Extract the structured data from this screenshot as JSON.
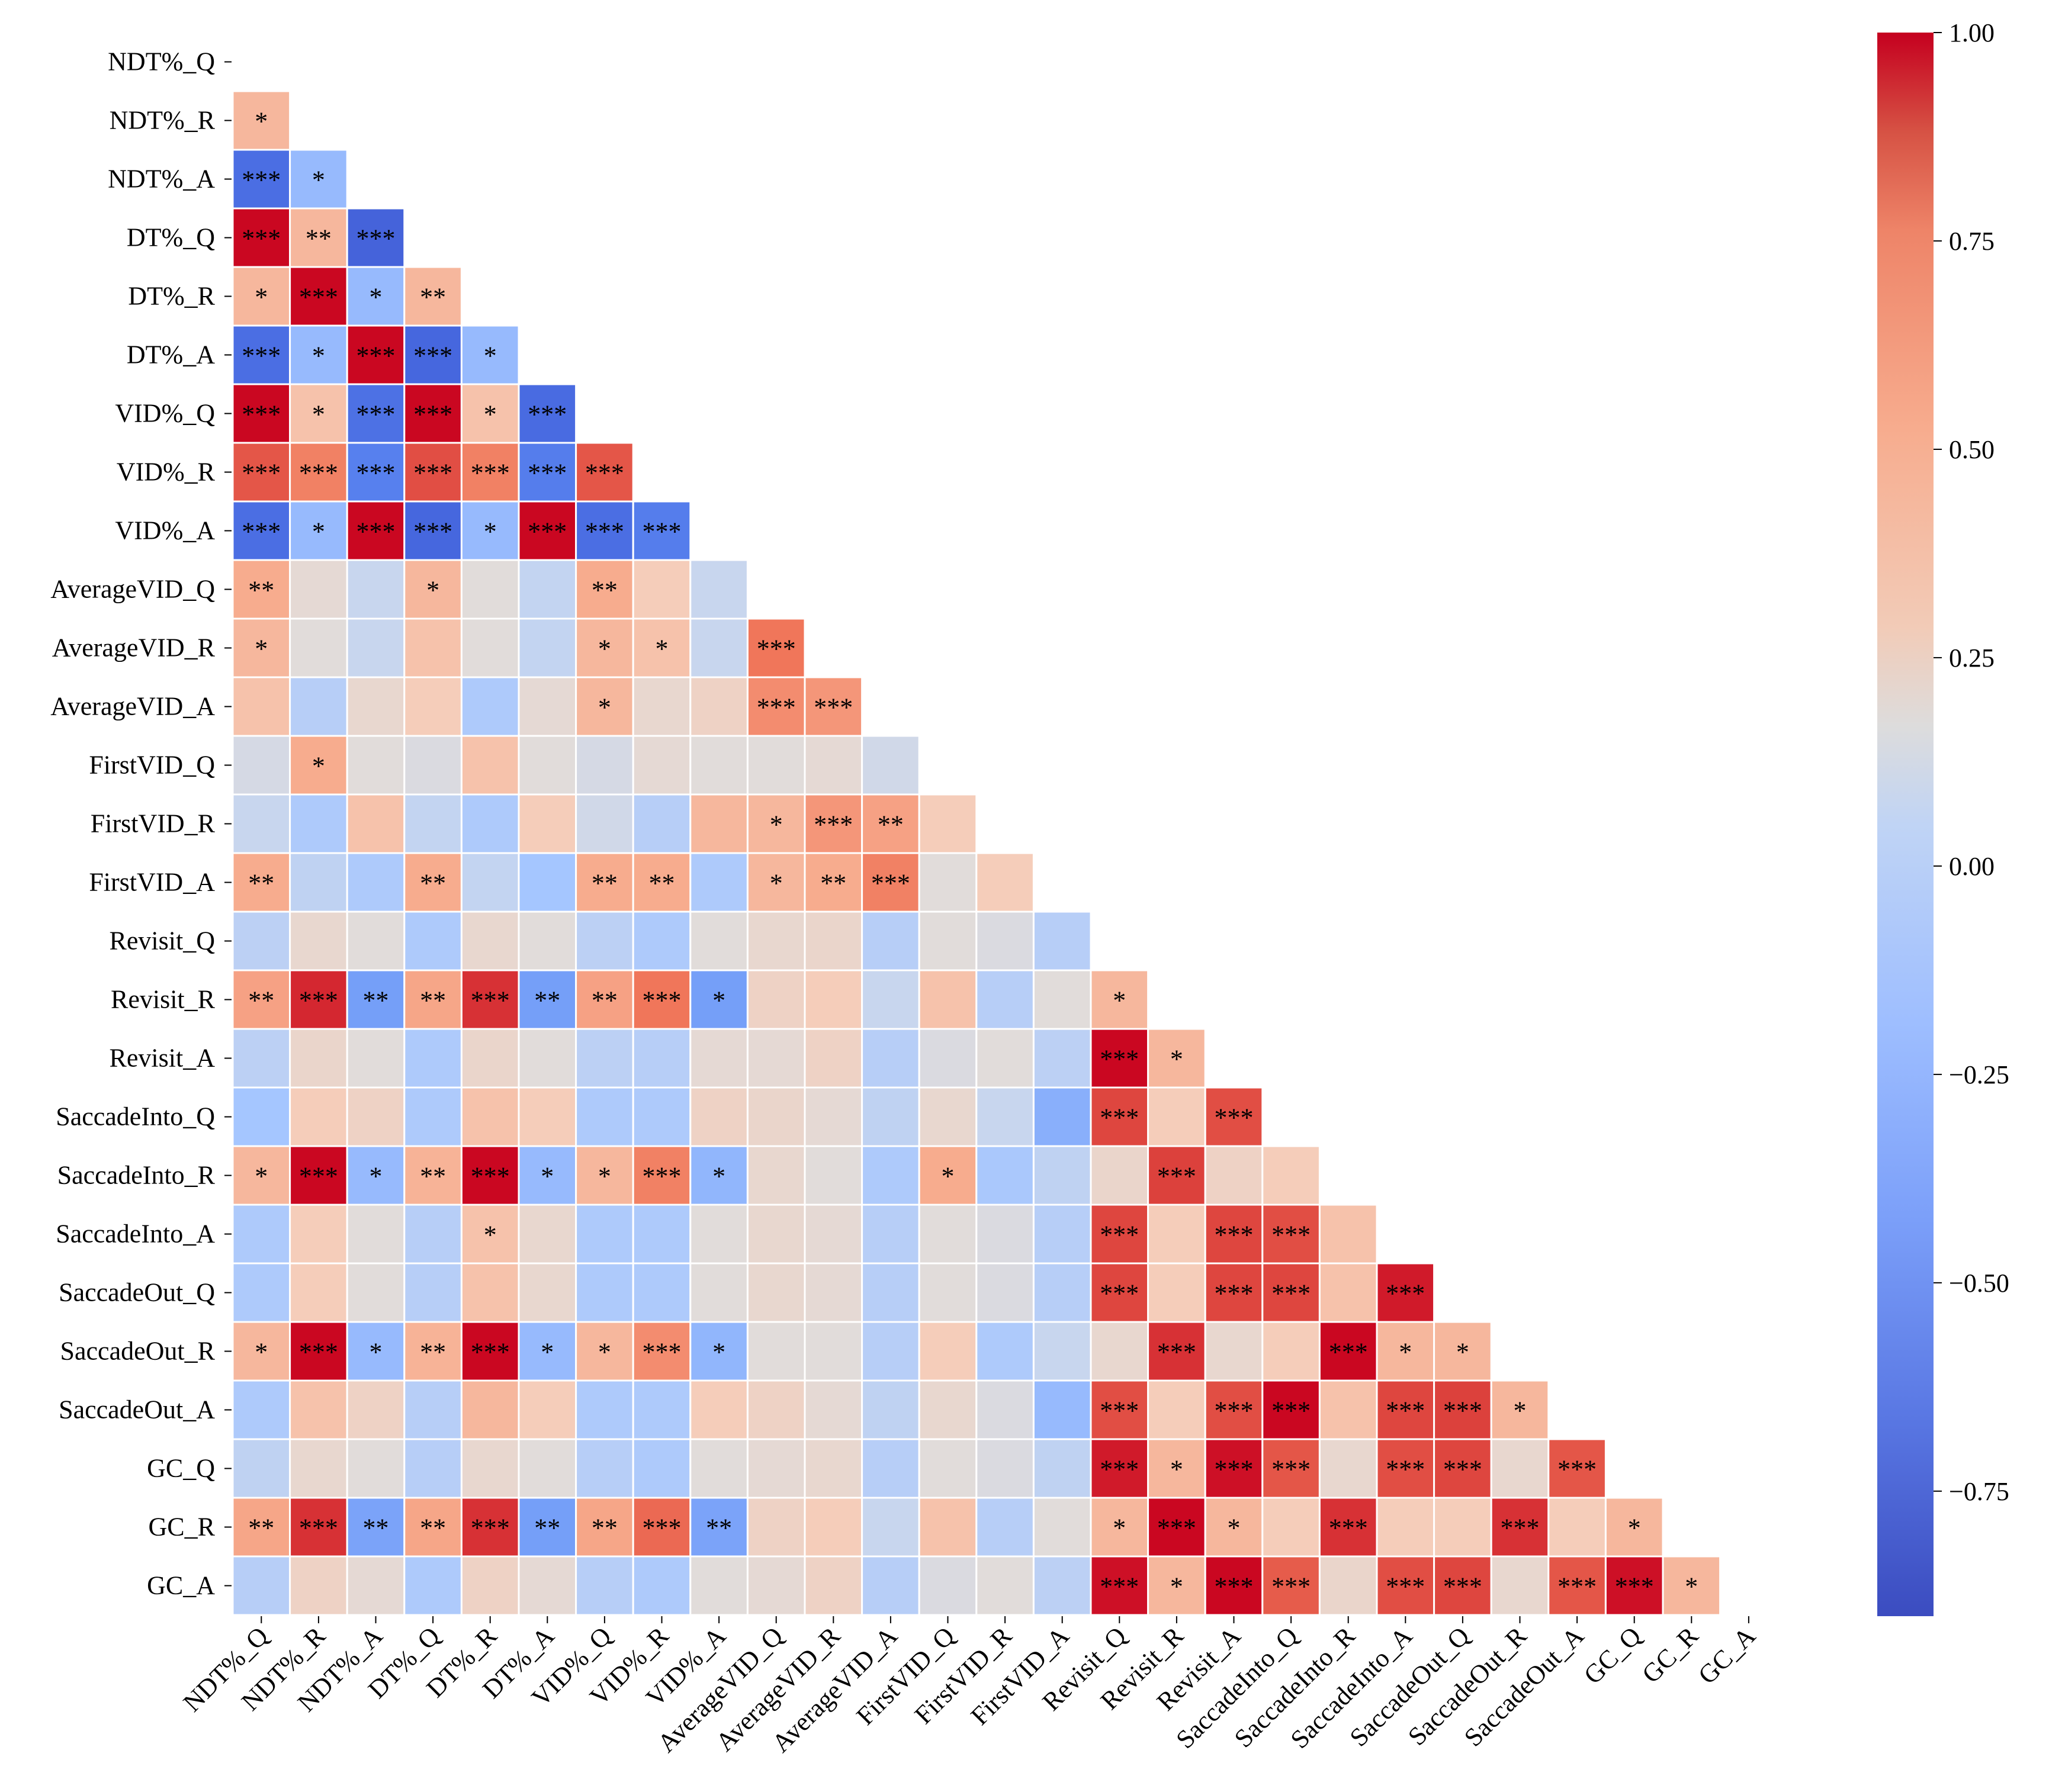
{
  "chart_data": {
    "type": "heatmap",
    "variables": [
      "NDT%_Q",
      "NDT%_R",
      "NDT%_A",
      "DT%_Q",
      "DT%_R",
      "DT%_A",
      "VID%_Q",
      "VID%_R",
      "VID%_A",
      "AverageVID_Q",
      "AverageVID_R",
      "AverageVID_A",
      "FirstVID_Q",
      "FirstVID_R",
      "FirstVID_A",
      "Revisit_Q",
      "Revisit_R",
      "Revisit_A",
      "SaccadeInto_Q",
      "SaccadeInto_R",
      "SaccadeInto_A",
      "SaccadeOut_Q",
      "SaccadeOut_R",
      "SaccadeOut_A",
      "GC_Q",
      "GC_R",
      "GC_A"
    ],
    "matrix": [
      [],
      [
        0.3
      ],
      [
        -0.7,
        -0.3
      ],
      [
        0.98,
        0.3,
        -0.77
      ],
      [
        0.3,
        0.98,
        -0.3,
        0.3
      ],
      [
        -0.7,
        -0.3,
        0.98,
        -0.75,
        -0.3
      ],
      [
        0.98,
        0.25,
        -0.68,
        0.98,
        0.25,
        -0.72
      ],
      [
        0.72,
        0.55,
        -0.58,
        0.75,
        0.55,
        -0.6,
        0.72
      ],
      [
        -0.7,
        -0.3,
        0.98,
        -0.75,
        -0.3,
        0.98,
        -0.7,
        -0.6
      ],
      [
        0.35,
        0.08,
        -0.05,
        0.3,
        0.05,
        -0.08,
        0.35,
        0.2,
        -0.05
      ],
      [
        0.3,
        0.05,
        -0.05,
        0.25,
        0.05,
        -0.08,
        0.3,
        0.25,
        -0.05,
        0.6
      ],
      [
        0.25,
        -0.15,
        0.1,
        0.2,
        -0.2,
        0.08,
        0.3,
        0.1,
        0.15,
        0.5,
        0.45
      ],
      [
        0.0,
        0.35,
        0.05,
        0.02,
        0.25,
        0.05,
        0.0,
        0.08,
        0.05,
        0.05,
        0.08,
        -0.02
      ],
      [
        -0.05,
        -0.2,
        0.25,
        -0.08,
        -0.2,
        0.2,
        -0.02,
        -0.15,
        0.3,
        0.3,
        0.45,
        0.4,
        0.2
      ],
      [
        0.35,
        -0.1,
        -0.2,
        0.35,
        -0.08,
        -0.25,
        0.35,
        0.35,
        -0.2,
        0.3,
        0.35,
        0.55,
        0.05,
        0.2
      ],
      [
        -0.12,
        0.1,
        0.05,
        -0.2,
        0.1,
        0.05,
        -0.12,
        -0.2,
        0.05,
        0.1,
        0.12,
        -0.15,
        0.05,
        0.02,
        -0.15
      ],
      [
        0.4,
        0.88,
        -0.42,
        0.38,
        0.85,
        -0.42,
        0.4,
        0.6,
        -0.42,
        0.15,
        0.2,
        -0.05,
        0.25,
        -0.15,
        0.05,
        0.3
      ],
      [
        -0.12,
        0.12,
        0.05,
        -0.2,
        0.12,
        0.05,
        -0.12,
        -0.15,
        0.08,
        0.08,
        0.15,
        -0.15,
        0.02,
        0.05,
        -0.12,
        0.98,
        0.3
      ],
      [
        -0.25,
        0.2,
        0.15,
        -0.2,
        0.25,
        0.2,
        -0.2,
        -0.2,
        0.15,
        0.12,
        0.08,
        -0.1,
        0.1,
        -0.05,
        -0.35,
        0.78,
        0.2,
        0.75
      ],
      [
        0.3,
        0.98,
        -0.3,
        0.32,
        0.98,
        -0.3,
        0.3,
        0.55,
        -0.32,
        0.1,
        0.05,
        -0.2,
        0.35,
        -0.22,
        -0.1,
        0.12,
        0.8,
        0.15,
        0.2
      ],
      [
        -0.2,
        0.2,
        0.05,
        -0.15,
        0.25,
        0.1,
        -0.2,
        -0.2,
        0.05,
        0.1,
        0.08,
        -0.15,
        0.05,
        0.02,
        -0.15,
        0.78,
        0.2,
        0.78,
        0.75,
        0.25
      ],
      [
        -0.2,
        0.2,
        0.05,
        -0.15,
        0.25,
        0.1,
        -0.2,
        -0.2,
        0.05,
        0.1,
        0.08,
        -0.15,
        0.05,
        0.02,
        -0.15,
        0.78,
        0.2,
        0.78,
        0.78,
        0.25,
        0.92
      ],
      [
        0.3,
        0.98,
        -0.3,
        0.32,
        0.98,
        -0.3,
        0.3,
        0.5,
        -0.32,
        0.05,
        0.05,
        -0.15,
        0.2,
        -0.2,
        -0.05,
        0.1,
        0.85,
        0.1,
        0.2,
        0.98,
        0.3,
        0.3
      ],
      [
        -0.2,
        0.25,
        0.15,
        -0.15,
        0.3,
        0.2,
        -0.2,
        -0.2,
        0.2,
        0.15,
        0.08,
        -0.1,
        0.1,
        0.02,
        -0.3,
        0.75,
        0.2,
        0.75,
        0.98,
        0.25,
        0.78,
        0.8,
        0.3
      ],
      [
        -0.1,
        0.1,
        0.05,
        -0.15,
        0.1,
        0.05,
        -0.15,
        -0.2,
        0.05,
        0.08,
        0.1,
        -0.15,
        0.05,
        0.02,
        -0.1,
        0.92,
        0.3,
        0.95,
        0.72,
        0.1,
        0.75,
        0.78,
        0.1,
        0.72
      ],
      [
        0.38,
        0.85,
        -0.4,
        0.38,
        0.85,
        -0.42,
        0.38,
        0.65,
        -0.4,
        0.15,
        0.2,
        -0.05,
        0.25,
        -0.15,
        0.05,
        0.3,
        0.98,
        0.3,
        0.2,
        0.85,
        0.2,
        0.2,
        0.85,
        0.2,
        0.3
      ],
      [
        -0.15,
        0.15,
        0.08,
        -0.2,
        0.15,
        0.08,
        -0.15,
        -0.2,
        0.05,
        0.08,
        0.15,
        -0.15,
        0.02,
        0.05,
        -0.12,
        0.95,
        0.3,
        0.98,
        0.7,
        0.12,
        0.75,
        0.78,
        0.1,
        0.72,
        0.95,
        0.3
      ]
    ],
    "annotations": [
      [],
      [
        "*"
      ],
      [
        "***",
        "*"
      ],
      [
        "***",
        "**",
        "***"
      ],
      [
        "*",
        "***",
        "*",
        "**"
      ],
      [
        "***",
        "*",
        "***",
        "***",
        "*"
      ],
      [
        "***",
        "*",
        "***",
        "***",
        "*",
        "***"
      ],
      [
        "***",
        "***",
        "***",
        "***",
        "***",
        "***",
        "***"
      ],
      [
        "***",
        "*",
        "***",
        "***",
        "*",
        "***",
        "***",
        "***"
      ],
      [
        "**",
        "",
        "",
        "*",
        "",
        "",
        "**",
        "",
        ""
      ],
      [
        "*",
        "",
        "",
        "",
        "",
        "",
        "*",
        "*",
        "",
        "***"
      ],
      [
        "",
        "",
        "",
        "",
        "",
        "",
        "*",
        "",
        "",
        "***",
        "***"
      ],
      [
        "",
        "*",
        "",
        "",
        "",
        "",
        "",
        "",
        "",
        "",
        "",
        ""
      ],
      [
        "",
        "",
        "",
        "",
        "",
        "",
        "",
        "",
        "",
        "*",
        "***",
        "**",
        ""
      ],
      [
        "**",
        "",
        "",
        "**",
        "",
        "",
        "**",
        "**",
        "",
        "*",
        "**",
        "***",
        "",
        ""
      ],
      [
        "",
        "",
        "",
        "",
        "",
        "",
        "",
        "",
        "",
        "",
        "",
        "",
        "",
        "",
        ""
      ],
      [
        "**",
        "***",
        "**",
        "**",
        "***",
        "**",
        "**",
        "***",
        "*",
        "",
        "",
        "",
        "",
        "",
        "",
        "*"
      ],
      [
        "",
        "",
        "",
        "",
        "",
        "",
        "",
        "",
        "",
        "",
        "",
        "",
        "",
        "",
        "",
        "***",
        "*"
      ],
      [
        "",
        "",
        "",
        "",
        "",
        "",
        "",
        "",
        "",
        "",
        "",
        "",
        "",
        "",
        "",
        "***",
        "",
        "***"
      ],
      [
        "*",
        "***",
        "*",
        "**",
        "***",
        "*",
        "*",
        "***",
        "*",
        "",
        "",
        "",
        "*",
        "",
        "",
        "",
        "***",
        "",
        ""
      ],
      [
        "",
        "",
        "",
        "",
        "*",
        "",
        "",
        "",
        "",
        "",
        "",
        "",
        "",
        "",
        "",
        "***",
        "",
        "***",
        "***",
        ""
      ],
      [
        "",
        "",
        "",
        "",
        "",
        "",
        "",
        "",
        "",
        "",
        "",
        "",
        "",
        "",
        "",
        "***",
        "",
        "***",
        "***",
        "",
        "***"
      ],
      [
        "*",
        "***",
        "*",
        "**",
        "***",
        "*",
        "*",
        "***",
        "*",
        "",
        "",
        "",
        "",
        "",
        "",
        "",
        "***",
        "",
        "",
        "***",
        "*",
        "*"
      ],
      [
        "",
        "",
        "",
        "",
        "",
        "",
        "",
        "",
        "",
        "",
        "",
        "",
        "",
        "",
        "",
        "***",
        "",
        "***",
        "***",
        "",
        "***",
        "***",
        "*"
      ],
      [
        "",
        "",
        "",
        "",
        "",
        "",
        "",
        "",
        "",
        "",
        "",
        "",
        "",
        "",
        "",
        "***",
        "*",
        "***",
        "***",
        "",
        "***",
        "***",
        "",
        "***"
      ],
      [
        "**",
        "***",
        "**",
        "**",
        "***",
        "**",
        "**",
        "***",
        "**",
        "",
        "",
        "",
        "",
        "",
        "",
        "*",
        "***",
        "*",
        "",
        "***",
        "",
        "",
        "***",
        "",
        "*"
      ],
      [
        "",
        "",
        "",
        "",
        "",
        "",
        "",
        "",
        "",
        "",
        "",
        "",
        "",
        "",
        "",
        "***",
        "*",
        "***",
        "***",
        "",
        "***",
        "***",
        "",
        "***",
        "***",
        "*"
      ]
    ],
    "colorbar": {
      "min": -0.9,
      "max": 1.0,
      "ticks": [
        1.0,
        0.75,
        0.5,
        0.25,
        0.0,
        -0.25,
        -0.5,
        -0.75
      ],
      "tick_labels": [
        "1.00",
        "0.75",
        "0.50",
        "0.25",
        "0.00",
        "−0.25",
        "−0.50",
        "−0.75"
      ]
    },
    "title": "",
    "xlabel": "",
    "ylabel": ""
  }
}
